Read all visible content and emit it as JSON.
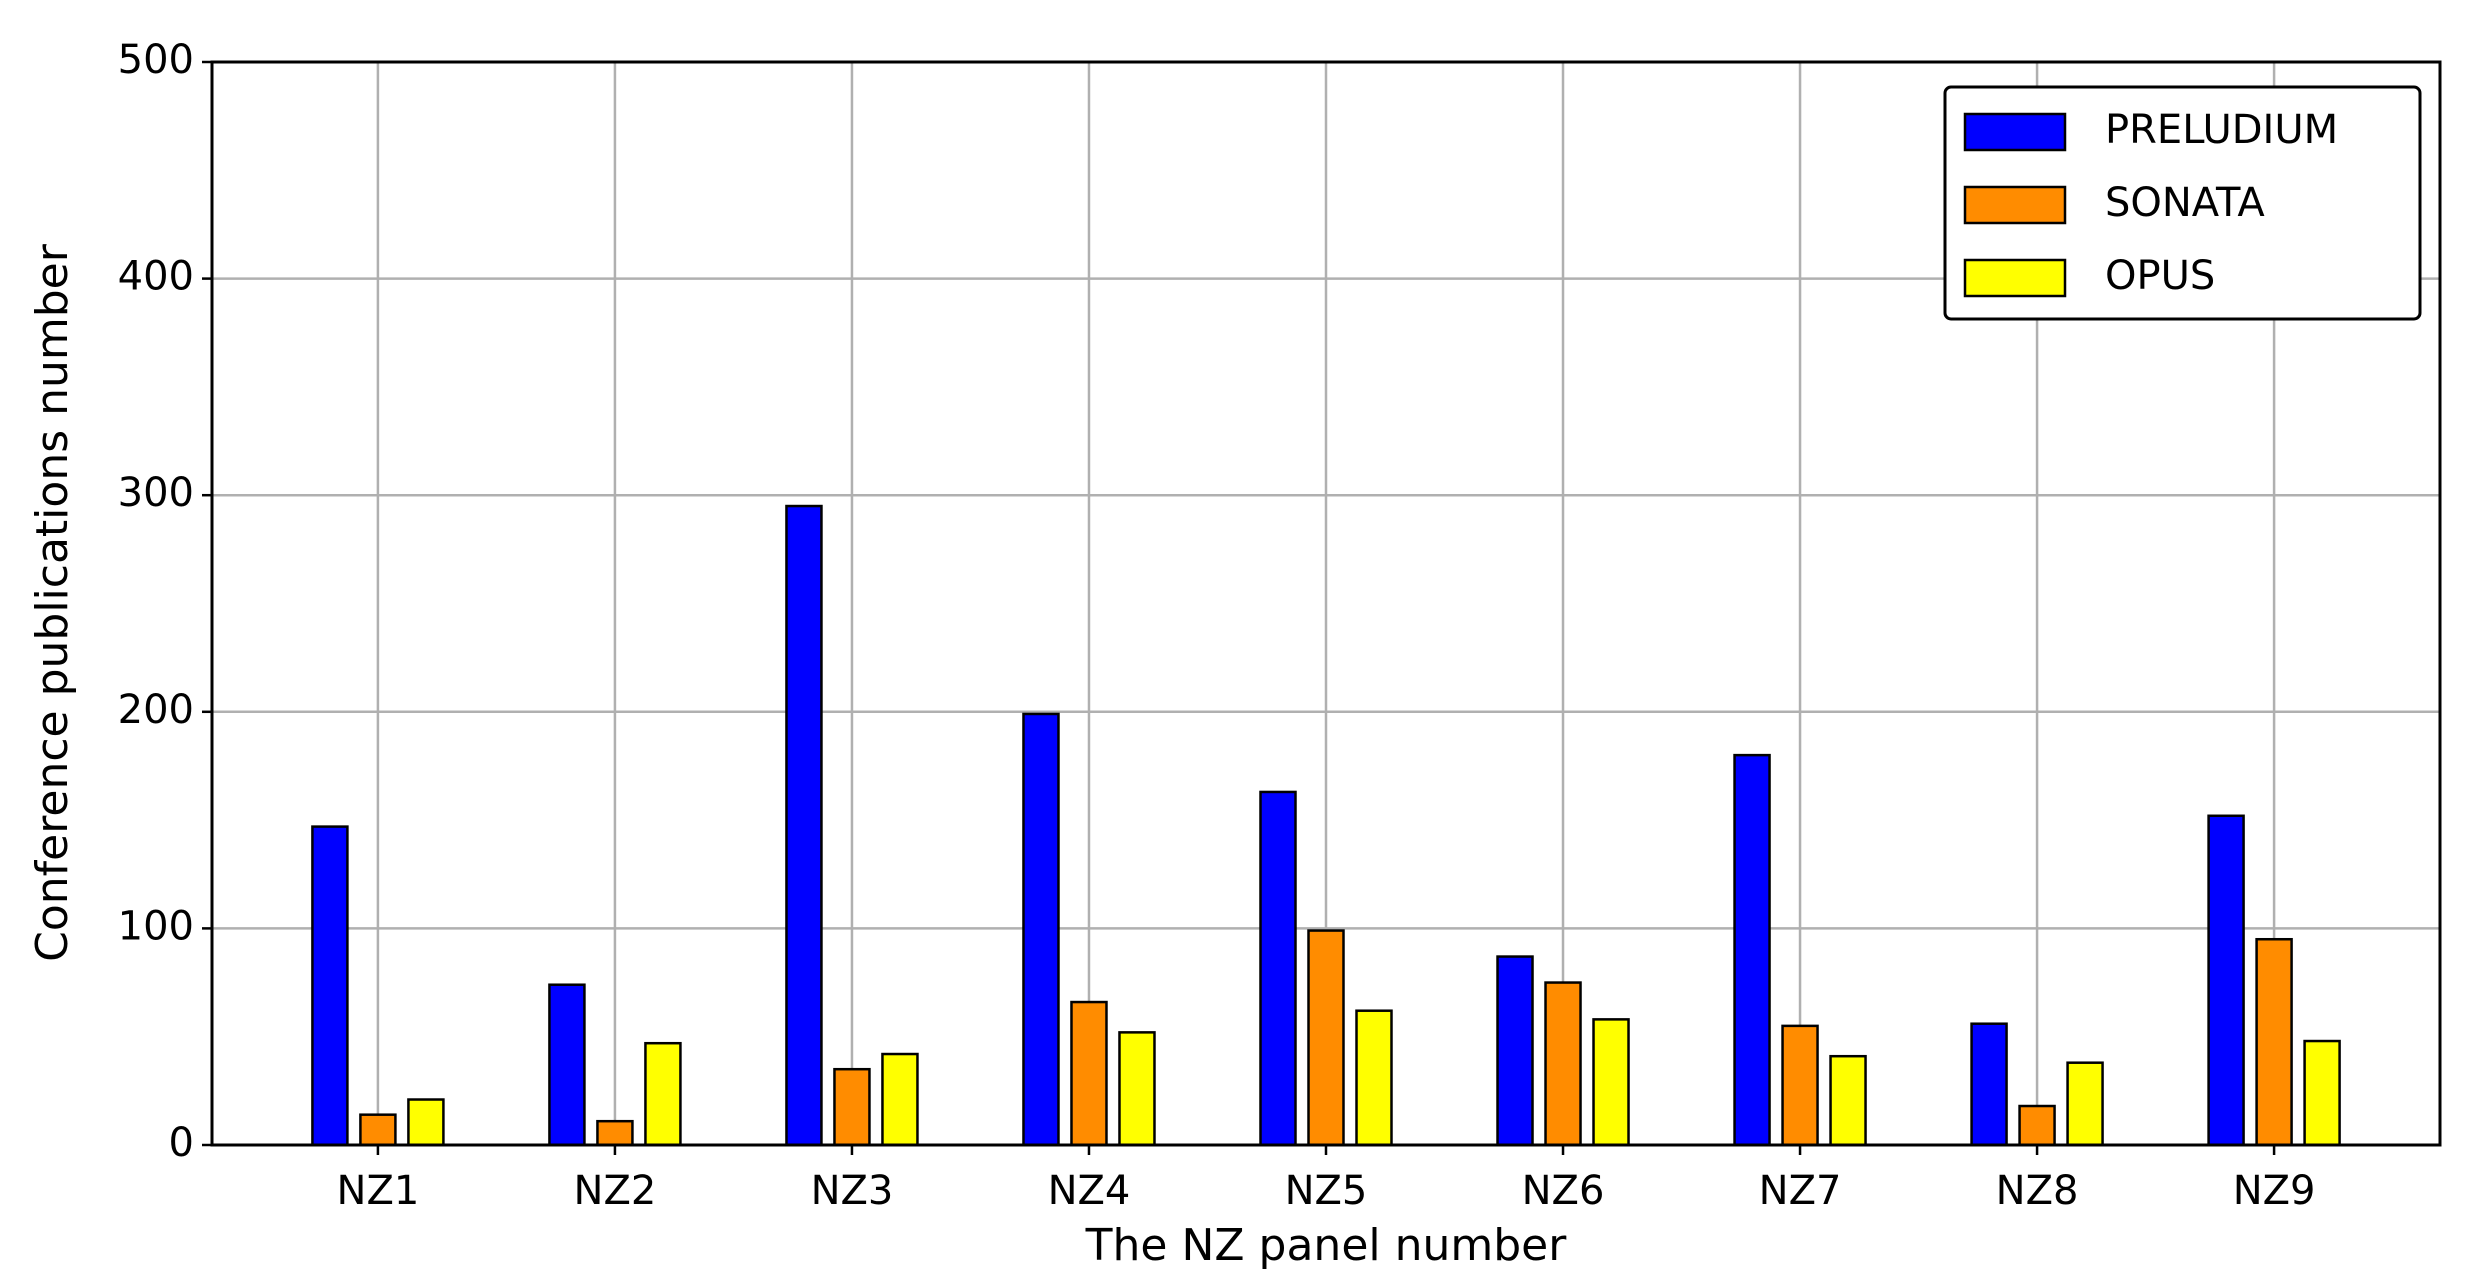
{
  "chart_data": {
    "type": "bar",
    "x_label": "The NZ panel number",
    "y_label": "Conference publications number",
    "categories": [
      "NZ1",
      "NZ2",
      "NZ3",
      "NZ4",
      "NZ5",
      "NZ6",
      "NZ7",
      "NZ8",
      "NZ9"
    ],
    "series": [
      {
        "name": "PRELUDIUM",
        "color": "#0000ff",
        "values": [
          147,
          74,
          295,
          199,
          163,
          87,
          180,
          56,
          152
        ]
      },
      {
        "name": "SONATA",
        "color": "#ff8c00",
        "values": [
          14,
          11,
          35,
          66,
          99,
          75,
          55,
          18,
          95
        ]
      },
      {
        "name": "OPUS",
        "color": "#ffff00",
        "values": [
          21,
          47,
          42,
          52,
          62,
          58,
          41,
          38,
          48
        ]
      }
    ],
    "ylim": [
      0,
      500
    ],
    "yticks": [
      0,
      100,
      200,
      300,
      400,
      500
    ],
    "grid": true,
    "legend": "upper right"
  }
}
